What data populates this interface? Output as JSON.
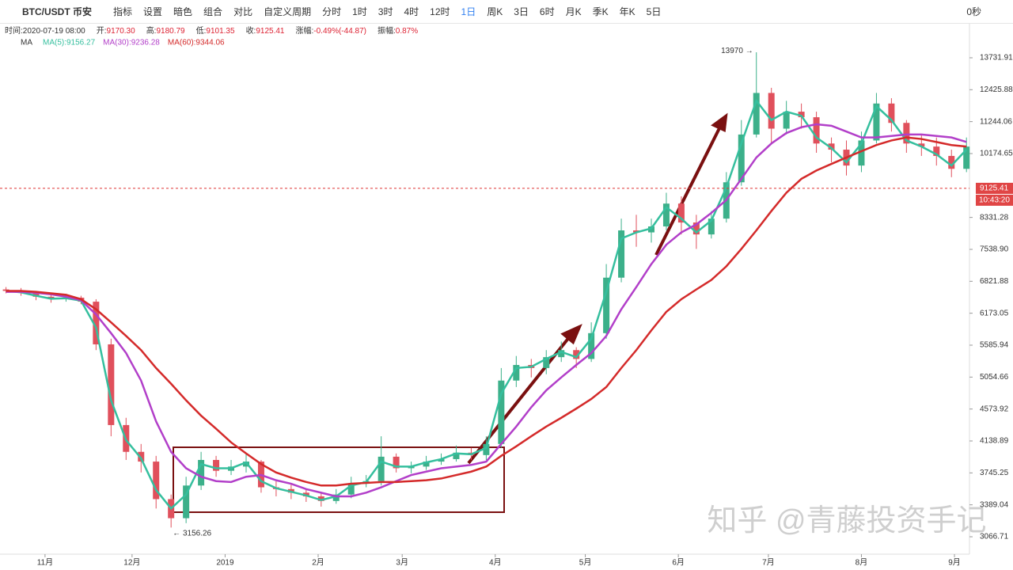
{
  "toolbar": {
    "symbol": "BTC/USDT 币安",
    "tools": [
      "指标",
      "设置",
      "暗色",
      "组合",
      "对比",
      "自定义周期"
    ],
    "periods": [
      "分时",
      "1时",
      "3时",
      "4时",
      "12时",
      "1日",
      "周K",
      "3日",
      "6时",
      "月K",
      "季K",
      "年K",
      "5日"
    ],
    "active_period": "1日",
    "timer": "0秒"
  },
  "info": [
    {
      "label": "时间:",
      "value": "2020-07-19 08:00"
    },
    {
      "label": "开:",
      "value": "9170.30"
    },
    {
      "label": "高:",
      "value": "9180.79"
    },
    {
      "label": "低:",
      "value": "9101.35"
    },
    {
      "label": "收:",
      "value": "9125.41"
    },
    {
      "label": "涨幅:",
      "value": "-0.49%(-44.87)"
    },
    {
      "label": "振幅:",
      "value": "0.87%"
    }
  ],
  "indicator": "MA",
  "watermark": "知乎 @青藤投资手记",
  "chart_data": {
    "type": "candlestick",
    "log_scale": true,
    "xlim": [
      0,
      323
    ],
    "ylim": [
      2904,
      15275
    ],
    "up_color": "#3cb08a",
    "down_color": "#e0505c",
    "x": [
      2,
      7,
      12,
      17,
      22,
      27,
      32,
      37,
      42,
      47,
      52,
      57,
      62,
      67,
      72,
      77,
      82,
      87,
      92,
      97,
      102,
      107,
      112,
      117,
      122,
      127,
      132,
      137,
      142,
      147,
      152,
      157,
      162,
      167,
      172,
      177,
      182,
      187,
      192,
      197,
      202,
      207,
      212,
      217,
      222,
      227,
      232,
      237,
      242,
      247,
      252,
      257,
      262,
      267,
      272,
      277,
      282,
      287,
      292,
      297,
      302,
      307,
      312,
      317,
      322
    ],
    "open": [
      6650,
      6620,
      6580,
      6500,
      6450,
      6480,
      6400,
      5600,
      4350,
      4000,
      3880,
      3450,
      3250,
      3600,
      3900,
      3770,
      3820,
      3880,
      3580,
      3560,
      3520,
      3480,
      3430,
      3500,
      3620,
      3650,
      3940,
      3800,
      3820,
      3880,
      3910,
      3990,
      3960,
      4100,
      5000,
      5250,
      5200,
      5380,
      5500,
      5350,
      5800,
      6900,
      8000,
      7950,
      8100,
      8700,
      8200,
      7900,
      8300,
      9300,
      10800,
      12300,
      11000,
      11600,
      11400,
      10500,
      10300,
      9800,
      10600,
      11900,
      11200,
      10500,
      10400,
      10100,
      9700
    ],
    "high": [
      6700,
      6680,
      6620,
      6560,
      6560,
      6520,
      6450,
      5700,
      4450,
      4100,
      3950,
      3500,
      3700,
      4000,
      3950,
      3900,
      3980,
      3900,
      3650,
      3620,
      3560,
      3520,
      3560,
      3700,
      3720,
      4200,
      3980,
      3880,
      3950,
      3980,
      4080,
      4050,
      4200,
      5200,
      5400,
      5350,
      5500,
      5650,
      5550,
      6000,
      7200,
      8300,
      8400,
      8300,
      9000,
      8900,
      8400,
      8500,
      9600,
      11300,
      13970,
      12500,
      12000,
      11900,
      11600,
      10700,
      10600,
      10900,
      12300,
      12100,
      11300,
      10800,
      10700,
      10300,
      10700
    ],
    "low": [
      6570,
      6520,
      6430,
      6380,
      6400,
      6350,
      5500,
      4200,
      3900,
      3750,
      3350,
      3156.26,
      3200,
      3550,
      3700,
      3720,
      3750,
      3520,
      3480,
      3450,
      3420,
      3370,
      3400,
      3460,
      3580,
      3600,
      3750,
      3740,
      3780,
      3840,
      3880,
      3900,
      3900,
      4050,
      4900,
      5050,
      5100,
      5300,
      5200,
      5300,
      5700,
      6800,
      7600,
      7700,
      8000,
      7900,
      7550,
      7800,
      8200,
      9200,
      10700,
      10500,
      10800,
      11000,
      10200,
      9900,
      9500,
      9600,
      10500,
      10900,
      10200,
      10100,
      9800,
      9450,
      9600
    ],
    "close": [
      6620,
      6580,
      6500,
      6450,
      6480,
      6400,
      5600,
      4350,
      4000,
      3880,
      3450,
      3250,
      3600,
      3900,
      3770,
      3820,
      3880,
      3580,
      3560,
      3520,
      3480,
      3430,
      3500,
      3620,
      3650,
      3940,
      3800,
      3820,
      3880,
      3910,
      3990,
      3960,
      4100,
      5000,
      5250,
      5200,
      5380,
      5500,
      5350,
      5800,
      6900,
      8000,
      7950,
      8100,
      8700,
      8200,
      7900,
      8300,
      9300,
      10800,
      12300,
      11000,
      11600,
      11400,
      10500,
      10300,
      9800,
      10600,
      11900,
      11200,
      10500,
      10400,
      10100,
      9700,
      10400
    ],
    "series": [
      {
        "label": "MA(5):9156.27",
        "color": "#35bf9e",
        "values": [
          6620,
          6590,
          6520,
          6460,
          6470,
          6420,
          5900,
          4700,
          4150,
          3920,
          3550,
          3350,
          3500,
          3850,
          3800,
          3800,
          3870,
          3650,
          3570,
          3530,
          3490,
          3440,
          3480,
          3600,
          3640,
          3880,
          3820,
          3820,
          3870,
          3910,
          3980,
          3970,
          4050,
          4800,
          5200,
          5220,
          5350,
          5470,
          5380,
          5700,
          6600,
          7800,
          7950,
          8050,
          8600,
          8300,
          7950,
          8250,
          9150,
          10500,
          12000,
          11300,
          11600,
          11450,
          10700,
          10350,
          9900,
          10500,
          11800,
          11300,
          10600,
          10400,
          10150,
          9800,
          10300
        ]
      },
      {
        "label": "MA(30):9236.28",
        "color": "#b23fc9",
        "values": [
          6600,
          6600,
          6580,
          6550,
          6500,
          6430,
          6150,
          5800,
          5450,
          5000,
          4400,
          4000,
          3800,
          3700,
          3650,
          3640,
          3700,
          3720,
          3660,
          3620,
          3560,
          3520,
          3480,
          3480,
          3520,
          3580,
          3650,
          3720,
          3760,
          3800,
          3820,
          3840,
          3880,
          4100,
          4330,
          4600,
          4850,
          5050,
          5250,
          5450,
          5750,
          6250,
          6700,
          7200,
          7650,
          7950,
          8150,
          8450,
          8800,
          9400,
          10050,
          10500,
          10850,
          11050,
          11150,
          11100,
          10900,
          10700,
          10700,
          10750,
          10800,
          10800,
          10750,
          10700,
          10550
        ]
      },
      {
        "label": "MA(60):9344.06",
        "color": "#d42a2a",
        "values": [
          6620,
          6620,
          6600,
          6570,
          6540,
          6450,
          6250,
          6000,
          5750,
          5500,
          5200,
          4950,
          4700,
          4480,
          4300,
          4120,
          3980,
          3850,
          3750,
          3690,
          3640,
          3600,
          3600,
          3620,
          3630,
          3640,
          3640,
          3650,
          3660,
          3680,
          3720,
          3760,
          3820,
          3950,
          4070,
          4200,
          4330,
          4450,
          4580,
          4720,
          4900,
          5200,
          5500,
          5850,
          6200,
          6450,
          6650,
          6850,
          7150,
          7550,
          8000,
          8500,
          9000,
          9400,
          9650,
          9850,
          10050,
          10250,
          10450,
          10600,
          10700,
          10650,
          10550,
          10450,
          10400
        ]
      }
    ],
    "yticks": [
      13731.91,
      12425.88,
      11244.06,
      10174.65,
      8331.28,
      {
        "value": 7538.9,
        "label": "7538.90"
      },
      6821.88,
      6173.05,
      5585.94,
      5054.66,
      4573.92,
      4138.89,
      3745.25,
      3389.04,
      3066.71
    ],
    "xticks": [
      {
        "value": 15,
        "label": "11月"
      },
      {
        "value": 44,
        "label": "12月"
      },
      {
        "value": 75,
        "label": "2019"
      },
      {
        "value": 106,
        "label": "2月"
      },
      {
        "value": 134,
        "label": "3月"
      },
      {
        "value": 165,
        "label": "4月"
      },
      {
        "value": 195,
        "label": "5月"
      },
      {
        "value": 226,
        "label": "6月"
      },
      {
        "value": 256,
        "label": "7月"
      },
      {
        "value": 287,
        "label": "8月"
      },
      {
        "value": 318,
        "label": "9月"
      }
    ],
    "current_price": 9125.41,
    "countdown": "10:43:20"
  }
}
